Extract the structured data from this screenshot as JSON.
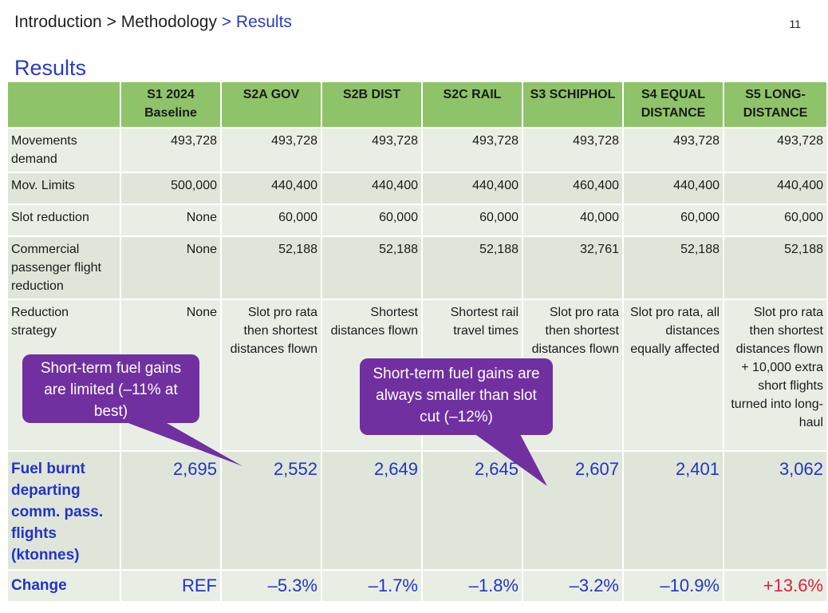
{
  "breadcrumb": {
    "part1": "Introduction",
    "sep1": ">",
    "part2": "Methodology",
    "sep2": ">",
    "current": "Results"
  },
  "page_number": "11",
  "title": "Results",
  "table": {
    "headers": [
      "",
      "S1 2024 Baseline",
      "S2A GOV",
      "S2B DIST",
      "S2C RAIL",
      "S3 SCHIPHOL",
      "S4 EQUAL DISTANCE",
      "S5 LONG-DISTANCE"
    ],
    "headers_lines": [
      [
        ""
      ],
      [
        "S1 2024",
        "Baseline"
      ],
      [
        "S2A GOV"
      ],
      [
        "S2B DIST"
      ],
      [
        "S2C RAIL"
      ],
      [
        "S3 SCHIPHOL"
      ],
      [
        "S4 EQUAL",
        "DISTANCE"
      ],
      [
        "S5 LONG-",
        "DISTANCE"
      ]
    ],
    "rows": [
      {
        "label": "Movements demand",
        "values": [
          "493,728",
          "493,728",
          "493,728",
          "493,728",
          "493,728",
          "493,728",
          "493,728"
        ]
      },
      {
        "label": "Mov. Limits",
        "values": [
          "500,000",
          "440,400",
          "440,400",
          "440,400",
          "460,400",
          "440,400",
          "440,400"
        ]
      },
      {
        "label": "Slot reduction",
        "values": [
          "None",
          "60,000",
          "60,000",
          "60,000",
          "40,000",
          "60,000",
          "60,000"
        ]
      },
      {
        "label": "Commercial passenger flight reduction",
        "values": [
          "None",
          "52,188",
          "52,188",
          "52,188",
          "32,761",
          "52,188",
          "52,188"
        ]
      },
      {
        "label": "Reduction strategy",
        "values": [
          "None",
          "Slot pro rata then shortest distances flown",
          "Shortest distances flown",
          "Shortest rail travel times",
          "Slot pro rata then shortest distances flown",
          "Slot pro rata, all distances equally affected",
          "Slot pro rata then shortest distances flown + 10,000 extra short flights turned into long-haul"
        ]
      }
    ],
    "fuel_row": {
      "label": "Fuel burnt departing comm. pass. flights (ktonnes)",
      "values": [
        "2,695",
        "2,552",
        "2,649",
        "2,645",
        "2,607",
        "2,401",
        "3,062"
      ]
    },
    "change_row": {
      "label": "Change",
      "values": [
        "REF",
        "–5.3%",
        "–1.7%",
        "–1.8%",
        "–3.2%",
        "–10.9%",
        "+13.6%"
      ]
    }
  },
  "callouts": [
    {
      "text": "Short-term fuel gains are limited (–11% at best)"
    },
    {
      "text": "Short-term fuel gains are always smaller than slot cut (–12%)"
    }
  ],
  "colors": {
    "accent": "#2b3bbf",
    "header_bg": "#8fc36a",
    "row_bg": "#e9eee5",
    "callout_bg": "#7030a0",
    "positive_change": "#e0203a",
    "value_blue": "#2233cc"
  }
}
